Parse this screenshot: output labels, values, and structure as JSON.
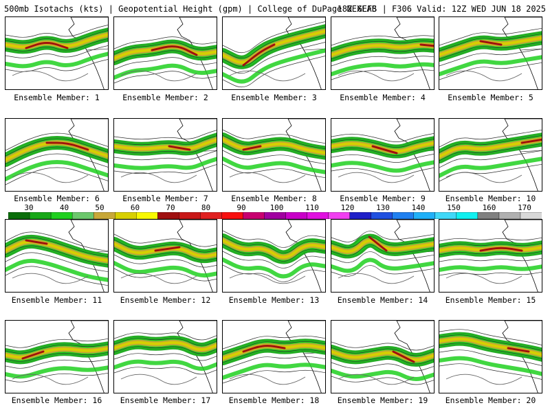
{
  "header": {
    "title_left": "500mb Isotachs (kts) | Geopotential Height (gpm) | College of DuPage NEXLAB",
    "title_right": "18Z GEFS | F306 Valid: 12Z WED JUN 18 2025"
  },
  "members": [
    {
      "label": "Ensemble Member: 1",
      "jet": [
        [
          0,
          40
        ],
        [
          30,
          45
        ],
        [
          60,
          35
        ],
        [
          90,
          45
        ],
        [
          130,
          30
        ],
        [
          151,
          25
        ]
      ],
      "core": [
        40,
        80
      ]
    },
    {
      "label": "Ensemble Member: 2",
      "jet": [
        [
          0,
          60
        ],
        [
          25,
          50
        ],
        [
          55,
          48
        ],
        [
          90,
          40
        ],
        [
          120,
          55
        ],
        [
          151,
          50
        ]
      ],
      "core": [
        60,
        110
      ]
    },
    {
      "label": "Ensemble Member: 3",
      "jet": [
        [
          0,
          55
        ],
        [
          30,
          70
        ],
        [
          55,
          50
        ],
        [
          75,
          40
        ],
        [
          110,
          30
        ],
        [
          151,
          20
        ]
      ],
      "core": [
        40,
        80
      ]
    },
    {
      "label": "Ensemble Member: 4",
      "jet": [
        [
          0,
          55
        ],
        [
          30,
          45
        ],
        [
          70,
          40
        ],
        [
          100,
          45
        ],
        [
          130,
          40
        ],
        [
          151,
          42
        ]
      ],
      "core": [
        115,
        145
      ]
    },
    {
      "label": "Ensemble Member: 5",
      "jet": [
        [
          0,
          55
        ],
        [
          30,
          45
        ],
        [
          60,
          35
        ],
        [
          90,
          40
        ],
        [
          120,
          35
        ],
        [
          151,
          30
        ]
      ],
      "core": [
        60,
        100
      ]
    },
    {
      "label": "Ensemble Member: 6",
      "jet": [
        [
          0,
          60
        ],
        [
          30,
          45
        ],
        [
          60,
          35
        ],
        [
          90,
          35
        ],
        [
          120,
          45
        ],
        [
          151,
          55
        ]
      ],
      "core": [
        70,
        120
      ]
    },
    {
      "label": "Ensemble Member: 7",
      "jet": [
        [
          0,
          40
        ],
        [
          40,
          45
        ],
        [
          80,
          40
        ],
        [
          110,
          45
        ],
        [
          135,
          35
        ],
        [
          151,
          30
        ]
      ],
      "core": [
        70,
        110
      ]
    },
    {
      "label": "Ensemble Member: 8",
      "jet": [
        [
          0,
          30
        ],
        [
          30,
          45
        ],
        [
          55,
          40
        ],
        [
          90,
          35
        ],
        [
          120,
          45
        ],
        [
          151,
          50
        ]
      ],
      "core": [
        35,
        60
      ]
    },
    {
      "label": "Ensemble Member: 9",
      "jet": [
        [
          0,
          40
        ],
        [
          30,
          35
        ],
        [
          60,
          40
        ],
        [
          95,
          50
        ],
        [
          125,
          40
        ],
        [
          151,
          35
        ]
      ],
      "core": [
        70,
        100
      ]
    },
    {
      "label": "Ensemble Member: 10",
      "jet": [
        [
          0,
          55
        ],
        [
          30,
          40
        ],
        [
          60,
          45
        ],
        [
          90,
          40
        ],
        [
          120,
          35
        ],
        [
          151,
          30
        ]
      ],
      "core": [
        120,
        151
      ]
    },
    {
      "label": "Ensemble Member: 11",
      "jet": [
        [
          0,
          45
        ],
        [
          30,
          30
        ],
        [
          60,
          35
        ],
        [
          90,
          45
        ],
        [
          120,
          55
        ],
        [
          151,
          60
        ]
      ],
      "core": [
        30,
        70
      ]
    },
    {
      "label": "Ensemble Member: 12",
      "jet": [
        [
          0,
          35
        ],
        [
          30,
          50
        ],
        [
          60,
          45
        ],
        [
          95,
          40
        ],
        [
          125,
          55
        ],
        [
          151,
          50
        ]
      ],
      "core": [
        55,
        100
      ]
    },
    {
      "label": "Ensemble Member: 13",
      "jet": [
        [
          0,
          30
        ],
        [
          30,
          45
        ],
        [
          60,
          40
        ],
        [
          90,
          60
        ],
        [
          120,
          35
        ],
        [
          151,
          40
        ]
      ],
      "core": [
        0,
        0
      ]
    },
    {
      "label": "Ensemble Member: 14",
      "jet": [
        [
          0,
          40
        ],
        [
          30,
          50
        ],
        [
          55,
          25
        ],
        [
          80,
          45
        ],
        [
          120,
          40
        ],
        [
          151,
          35
        ]
      ],
      "core": [
        50,
        70
      ]
    },
    {
      "label": "Ensemble Member: 15",
      "jet": [
        [
          0,
          45
        ],
        [
          30,
          40
        ],
        [
          60,
          45
        ],
        [
          90,
          40
        ],
        [
          120,
          45
        ],
        [
          151,
          40
        ]
      ],
      "core": [
        70,
        115
      ]
    },
    {
      "label": "Ensemble Member: 16",
      "jet": [
        [
          0,
          50
        ],
        [
          25,
          55
        ],
        [
          55,
          45
        ],
        [
          85,
          40
        ],
        [
          120,
          45
        ],
        [
          151,
          40
        ]
      ],
      "core": [
        15,
        60
      ]
    },
    {
      "label": "Ensemble Member: 17",
      "jet": [
        [
          0,
          40
        ],
        [
          30,
          30
        ],
        [
          60,
          35
        ],
        [
          95,
          30
        ],
        [
          125,
          45
        ],
        [
          151,
          35
        ]
      ],
      "core": [
        0,
        0
      ]
    },
    {
      "label": "Ensemble Member: 18",
      "jet": [
        [
          0,
          55
        ],
        [
          30,
          45
        ],
        [
          60,
          35
        ],
        [
          90,
          40
        ],
        [
          120,
          35
        ],
        [
          151,
          40
        ]
      ],
      "core": [
        40,
        90
      ]
    },
    {
      "label": "Ensemble Member: 19",
      "jet": [
        [
          0,
          45
        ],
        [
          30,
          55
        ],
        [
          60,
          50
        ],
        [
          90,
          45
        ],
        [
          120,
          60
        ],
        [
          151,
          50
        ]
      ],
      "core": [
        95,
        130
      ]
    },
    {
      "label": "Ensemble Member: 20",
      "jet": [
        [
          0,
          30
        ],
        [
          35,
          25
        ],
        [
          70,
          35
        ],
        [
          100,
          40
        ],
        [
          130,
          45
        ],
        [
          151,
          50
        ]
      ],
      "core": [
        90,
        140
      ]
    }
  ],
  "colorbar": {
    "labels": [
      "30",
      "40",
      "50",
      "60",
      "70",
      "80",
      "90",
      "100",
      "110",
      "120",
      "130",
      "140",
      "150",
      "160",
      "170"
    ],
    "colors": [
      "#0a6e0a",
      "#18a818",
      "#20d020",
      "#6cc86c",
      "#c8a838",
      "#d8d000",
      "#f8f800",
      "#a01010",
      "#c81818",
      "#e02020",
      "#f81010",
      "#c80070",
      "#a000a0",
      "#c800c8",
      "#e010e0",
      "#f040f0",
      "#2020c8",
      "#2050e0",
      "#2080f0",
      "#20b0f8",
      "#40d8f8",
      "#10f0f0",
      "#808080",
      "#b0b0b0",
      "#d8d8d8"
    ]
  }
}
